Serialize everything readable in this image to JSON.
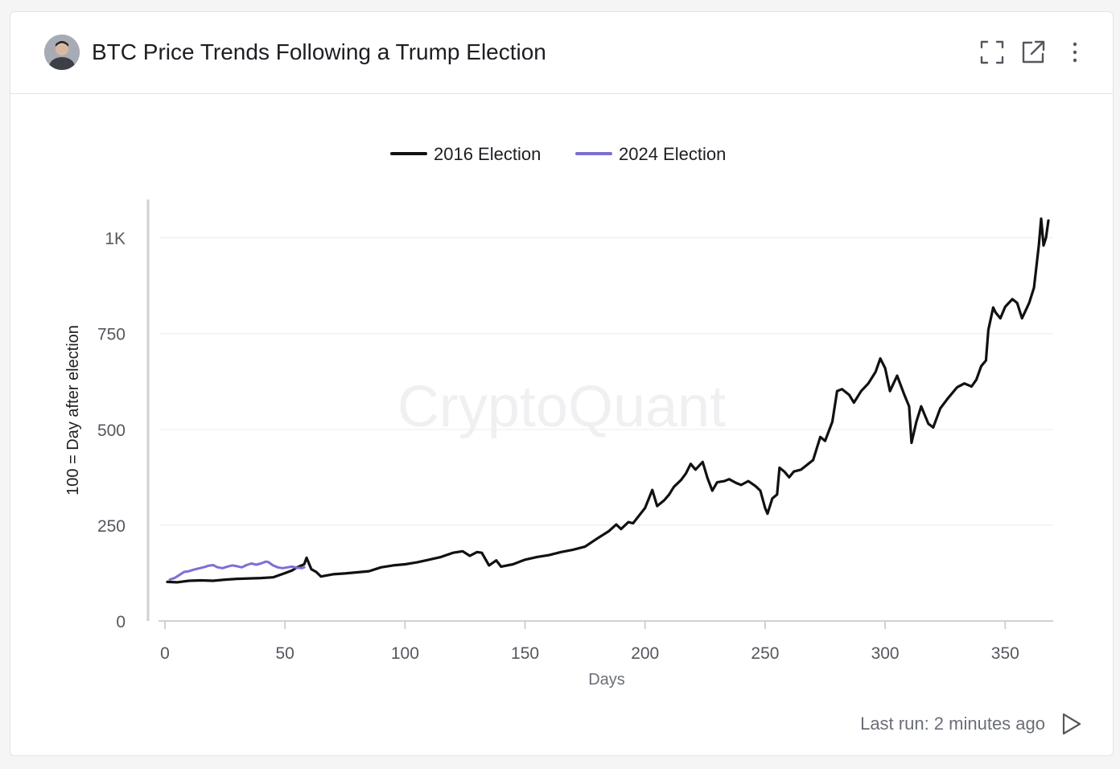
{
  "header": {
    "title": "BTC Price Trends Following a Trump Election",
    "icons": [
      "avatar",
      "expand-icon",
      "open-external-icon",
      "more-vertical-icon"
    ]
  },
  "footer": {
    "last_run": "Last run: 2 minutes ago",
    "run_icon": "play-icon"
  },
  "watermark": "CryptoQuant",
  "colors": {
    "series_2016": "#111111",
    "series_2024": "#7b6fd6",
    "grid": "#efeff2",
    "axis": "#cfd0d6",
    "tick_text": "#55575f"
  },
  "chart_data": {
    "type": "line",
    "title": "",
    "xlabel": "Days",
    "ylabel": "100 = Day after election",
    "xlim": [
      0,
      368
    ],
    "ylim": [
      0,
      1100
    ],
    "x_ticks": [
      0,
      50,
      100,
      150,
      200,
      250,
      300,
      350
    ],
    "x_tick_labels": [
      "0",
      "50",
      "100",
      "150",
      "200",
      "250",
      "300",
      "350"
    ],
    "y_ticks": [
      0,
      250,
      500,
      750,
      1000
    ],
    "y_tick_labels": [
      "0",
      "250",
      "500",
      "750",
      "1K"
    ],
    "grid": true,
    "legend_position": "top-center",
    "series": [
      {
        "name": "2016 Election",
        "color": "#111111",
        "points": [
          [
            1,
            102
          ],
          [
            5,
            101
          ],
          [
            10,
            105
          ],
          [
            15,
            106
          ],
          [
            20,
            105
          ],
          [
            25,
            108
          ],
          [
            30,
            110
          ],
          [
            35,
            111
          ],
          [
            40,
            112
          ],
          [
            45,
            114
          ],
          [
            50,
            125
          ],
          [
            53,
            132
          ],
          [
            55,
            140
          ],
          [
            58,
            148
          ],
          [
            59,
            165
          ],
          [
            61,
            135
          ],
          [
            63,
            128
          ],
          [
            65,
            116
          ],
          [
            70,
            122
          ],
          [
            75,
            124
          ],
          [
            80,
            127
          ],
          [
            85,
            130
          ],
          [
            90,
            140
          ],
          [
            95,
            145
          ],
          [
            100,
            148
          ],
          [
            105,
            153
          ],
          [
            110,
            160
          ],
          [
            115,
            167
          ],
          [
            120,
            178
          ],
          [
            124,
            182
          ],
          [
            127,
            170
          ],
          [
            130,
            180
          ],
          [
            132,
            178
          ],
          [
            135,
            145
          ],
          [
            138,
            158
          ],
          [
            140,
            142
          ],
          [
            145,
            148
          ],
          [
            150,
            160
          ],
          [
            155,
            167
          ],
          [
            160,
            172
          ],
          [
            165,
            180
          ],
          [
            170,
            186
          ],
          [
            175,
            194
          ],
          [
            180,
            215
          ],
          [
            185,
            235
          ],
          [
            188,
            252
          ],
          [
            190,
            240
          ],
          [
            193,
            258
          ],
          [
            195,
            255
          ],
          [
            200,
            295
          ],
          [
            203,
            342
          ],
          [
            205,
            300
          ],
          [
            208,
            315
          ],
          [
            210,
            330
          ],
          [
            212,
            350
          ],
          [
            215,
            368
          ],
          [
            217,
            385
          ],
          [
            219,
            410
          ],
          [
            221,
            395
          ],
          [
            224,
            415
          ],
          [
            226,
            373
          ],
          [
            228,
            340
          ],
          [
            230,
            362
          ],
          [
            233,
            365
          ],
          [
            235,
            370
          ],
          [
            238,
            360
          ],
          [
            240,
            355
          ],
          [
            243,
            365
          ],
          [
            246,
            352
          ],
          [
            248,
            340
          ],
          [
            250,
            295
          ],
          [
            251,
            280
          ],
          [
            253,
            320
          ],
          [
            255,
            330
          ],
          [
            256,
            400
          ],
          [
            258,
            390
          ],
          [
            260,
            375
          ],
          [
            262,
            390
          ],
          [
            265,
            395
          ],
          [
            270,
            420
          ],
          [
            273,
            480
          ],
          [
            275,
            470
          ],
          [
            278,
            520
          ],
          [
            280,
            600
          ],
          [
            282,
            605
          ],
          [
            285,
            590
          ],
          [
            287,
            570
          ],
          [
            290,
            600
          ],
          [
            293,
            620
          ],
          [
            296,
            650
          ],
          [
            298,
            685
          ],
          [
            300,
            660
          ],
          [
            302,
            600
          ],
          [
            305,
            640
          ],
          [
            308,
            590
          ],
          [
            310,
            560
          ],
          [
            311,
            465
          ],
          [
            313,
            520
          ],
          [
            315,
            560
          ],
          [
            318,
            515
          ],
          [
            320,
            505
          ],
          [
            323,
            555
          ],
          [
            326,
            580
          ],
          [
            330,
            610
          ],
          [
            333,
            620
          ],
          [
            336,
            612
          ],
          [
            338,
            630
          ],
          [
            340,
            665
          ],
          [
            342,
            680
          ],
          [
            343,
            760
          ],
          [
            345,
            818
          ],
          [
            346,
            805
          ],
          [
            348,
            790
          ],
          [
            350,
            820
          ],
          [
            353,
            840
          ],
          [
            355,
            830
          ],
          [
            357,
            790
          ],
          [
            360,
            830
          ],
          [
            362,
            870
          ],
          [
            364,
            980
          ],
          [
            365,
            1050
          ],
          [
            366,
            980
          ],
          [
            367,
            1000
          ],
          [
            368,
            1045
          ]
        ]
      },
      {
        "name": "2024 Election",
        "color": "#7b6fd6",
        "points": [
          [
            2,
            108
          ],
          [
            4,
            112
          ],
          [
            6,
            120
          ],
          [
            8,
            128
          ],
          [
            10,
            130
          ],
          [
            12,
            134
          ],
          [
            14,
            137
          ],
          [
            16,
            140
          ],
          [
            18,
            144
          ],
          [
            20,
            146
          ],
          [
            22,
            140
          ],
          [
            24,
            138
          ],
          [
            26,
            142
          ],
          [
            28,
            145
          ],
          [
            30,
            143
          ],
          [
            32,
            140
          ],
          [
            34,
            146
          ],
          [
            36,
            150
          ],
          [
            38,
            147
          ],
          [
            40,
            150
          ],
          [
            42,
            155
          ],
          [
            43,
            154
          ],
          [
            45,
            145
          ],
          [
            47,
            140
          ],
          [
            49,
            138
          ],
          [
            51,
            140
          ],
          [
            53,
            142
          ],
          [
            55,
            139
          ],
          [
            57,
            138
          ],
          [
            58,
            140
          ]
        ]
      }
    ]
  }
}
